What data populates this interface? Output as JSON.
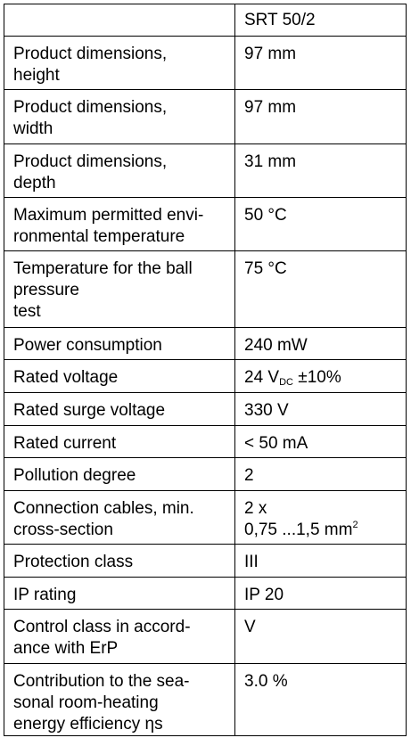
{
  "table": {
    "header": {
      "model": "SRT 50/2"
    },
    "rows": [
      {
        "parameter": "Product dimensions,\nheight",
        "value": "97 mm"
      },
      {
        "parameter": "Product dimensions,\nwidth",
        "value": "97 mm"
      },
      {
        "parameter": "Product dimensions,\ndepth",
        "value": "31 mm"
      },
      {
        "parameter": "Maximum permitted envi-\nronmental temperature",
        "value": "50 °C"
      },
      {
        "parameter": "Temperature for the ball\npressure\ntest",
        "value": "75 °C"
      },
      {
        "parameter": "Power consumption",
        "value": "240 mW"
      },
      {
        "parameter": "Rated voltage",
        "value_parts": {
          "main": "24 V",
          "subscript": "DC",
          "rest": " ±10%"
        }
      },
      {
        "parameter": "Rated surge voltage",
        "value": "330 V"
      },
      {
        "parameter": "Rated current",
        "value": "< 50 mA"
      },
      {
        "parameter": "Pollution degree",
        "value": "2"
      },
      {
        "parameter": "Connection cables, min.\ncross-section",
        "value_parts": {
          "line1": "2 x",
          "line2": "0,75 ...1,5 mm",
          "superscript": "2"
        }
      },
      {
        "parameter": "Protection class",
        "value": "III"
      },
      {
        "parameter": "IP rating",
        "value": "IP 20"
      },
      {
        "parameter": "Control class in accord-\nance with ErP",
        "value": "V"
      },
      {
        "parameter": "Contribution to the sea-\nsonal room-heating\nenergy efficiency ηs",
        "value": "3.0 %"
      }
    ]
  }
}
